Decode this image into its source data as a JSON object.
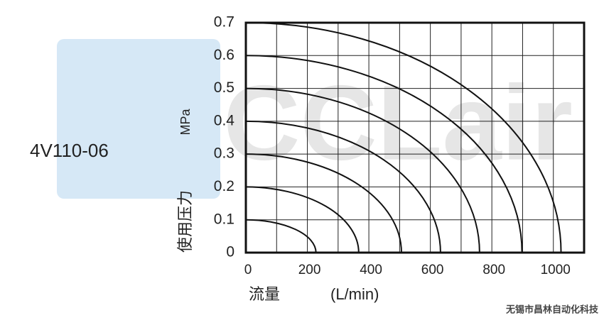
{
  "chart_data": {
    "type": "line",
    "model": "4V110-06",
    "y_unit": "MPa",
    "y_label": "使用压力",
    "x_label": "流量",
    "x_unit": "(L/min)",
    "watermark": "CCLair",
    "footer": "无锡市昌林自动化科技",
    "xlim": [
      0,
      1100
    ],
    "xticks": [
      0,
      200,
      400,
      600,
      800,
      1000
    ],
    "xgrid": [
      100,
      300,
      500,
      700,
      900
    ],
    "ylim": [
      0,
      0.7
    ],
    "yticks": [
      0,
      0.1,
      0.2,
      0.3,
      0.4,
      0.5,
      0.6,
      0.7
    ],
    "grid": true,
    "series": [
      {
        "color": "#111",
        "x": [
          0,
          228
        ],
        "values": [
          0.1,
          0
        ]
      },
      {
        "color": "#111",
        "x": [
          0,
          367
        ],
        "values": [
          0.2,
          0
        ]
      },
      {
        "color": "#111",
        "x": [
          0,
          506
        ],
        "values": [
          0.3,
          0
        ]
      },
      {
        "color": "#111",
        "x": [
          0,
          633
        ],
        "values": [
          0.4,
          0
        ]
      },
      {
        "color": "#111",
        "x": [
          0,
          760
        ],
        "values": [
          0.5,
          0
        ]
      },
      {
        "color": "#111",
        "x": [
          0,
          898
        ],
        "values": [
          0.6,
          0
        ]
      },
      {
        "color": "#111",
        "x": [
          0,
          1025
        ],
        "values": [
          0.7,
          0
        ]
      }
    ]
  }
}
